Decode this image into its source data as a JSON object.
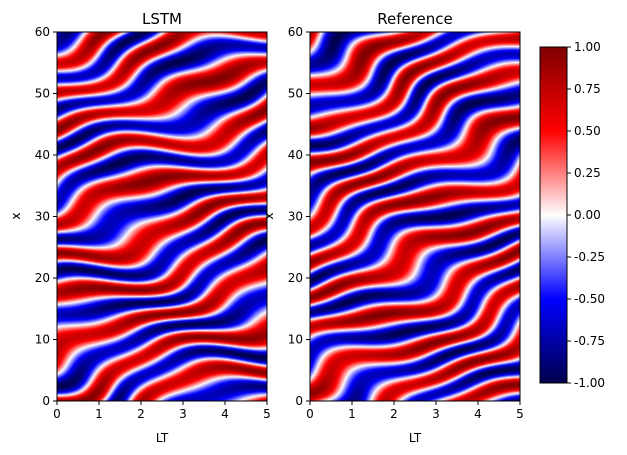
{
  "chart_data": [
    {
      "type": "heatmap",
      "title": "LSTM",
      "xlabel": "LT",
      "ylabel": "x",
      "xlim": [
        0,
        5
      ],
      "ylim": [
        0,
        60
      ],
      "xticks": [
        "0",
        "1",
        "2",
        "3",
        "4",
        "5"
      ],
      "yticks": [
        "0",
        "10",
        "20",
        "30",
        "40",
        "50",
        "60"
      ],
      "field": {
        "description_of_values": "Kuramoto–Sivashinsky type spatio-temporal field; diagonal red/blue stripes with values in [-1, 1]",
        "phase_slope_per_LT": 2.2,
        "stripe_wavelength_x": 7.0
      }
    },
    {
      "type": "heatmap",
      "title": "Reference",
      "xlabel": "LT",
      "ylabel": "x",
      "xlim": [
        0,
        5
      ],
      "ylim": [
        0,
        60
      ],
      "xticks": [
        "0",
        "1",
        "2",
        "3",
        "4",
        "5"
      ],
      "yticks": [
        "0",
        "10",
        "20",
        "30",
        "40",
        "50",
        "60"
      ],
      "field": {
        "description_of_values": "Reference spatio-temporal field; diagonal red/blue stripes with values in [-1, 1]",
        "phase_slope_per_LT": 3.0,
        "stripe_wavelength_x": 7.2
      }
    }
  ],
  "colorbar": {
    "colormap": "seismic",
    "min": -1.0,
    "max": 1.0,
    "ticks": [
      "-1.00",
      "-0.75",
      "-0.50",
      "-0.25",
      "0.00",
      "0.25",
      "0.50",
      "0.75",
      "1.00"
    ],
    "colors": {
      "low": "#00004c",
      "mid": "#ffffff",
      "high": "#7f0000"
    }
  }
}
